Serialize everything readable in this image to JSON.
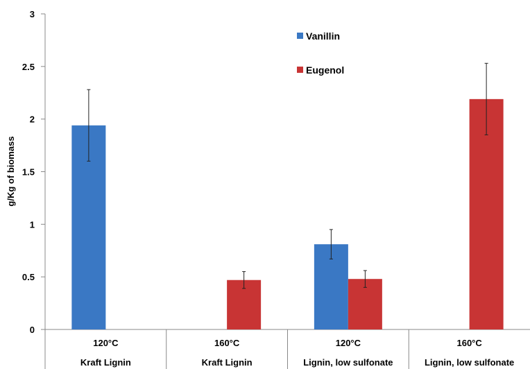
{
  "chart_data": {
    "type": "bar",
    "title": "",
    "xlabel": "",
    "ylabel": "g/Kg of biomass",
    "ylim": [
      0,
      3
    ],
    "yticks": [
      "0",
      "0.5",
      "1",
      "1.5",
      "2",
      "2.5",
      "3"
    ],
    "grid": false,
    "legend_position": "top-center",
    "categories": [
      {
        "temp": "120°C",
        "lignin": "Kraft Lignin"
      },
      {
        "temp": "160°C",
        "lignin": "Kraft Lignin"
      },
      {
        "temp": "120°C",
        "lignin": "Lignin, low sulfonate"
      },
      {
        "temp": "160°C",
        "lignin": "Lignin, low sulfonate"
      }
    ],
    "series": [
      {
        "name": "Vanillin",
        "color": "#3a78c4",
        "values": [
          1.94,
          0,
          0.81,
          0
        ],
        "errors": [
          0.34,
          0,
          0.14,
          0
        ]
      },
      {
        "name": "Eugenol",
        "color": "#c83434",
        "values": [
          0,
          0.47,
          0.48,
          2.19
        ],
        "errors": [
          0,
          0.08,
          0.08,
          0.34
        ]
      }
    ]
  }
}
